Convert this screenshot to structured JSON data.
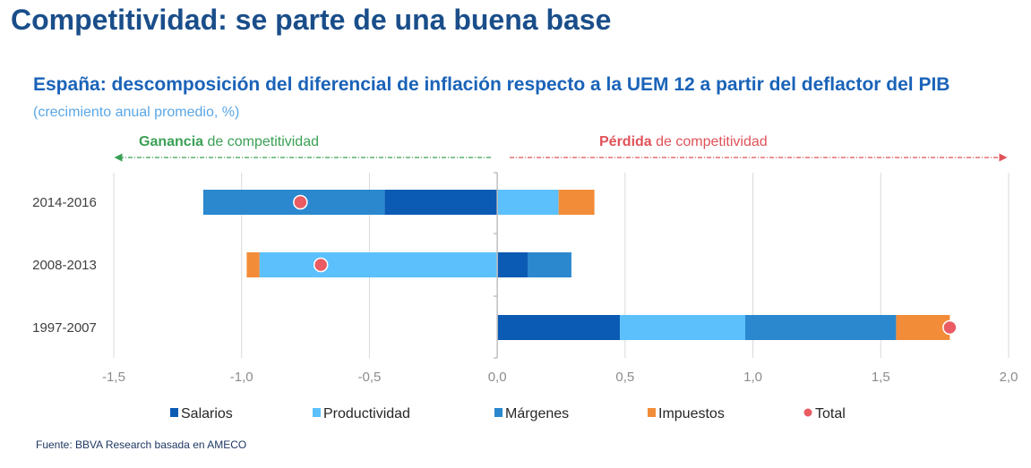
{
  "page": {
    "title": "Competitividad: se parte de una buena base",
    "chart_title": "España: descomposición del diferencial de inflación respecto a la UEM 12 a partir del deflactor del PIB",
    "chart_subtitle": "(crecimiento anual promedio, %)",
    "source": "Fuente: BBVA Research basada en AMECO"
  },
  "annotations": {
    "gain_bold": "Ganancia",
    "gain_rest": "de competitividad",
    "loss_bold": "Pérdida",
    "loss_rest": "de competitividad"
  },
  "colors": {
    "Salarios": "#0b5ab3",
    "Productividad": "#5bc0fb",
    "Márgenes": "#2b88cf",
    "Impuestos": "#f28c38",
    "Total": "#ea5b62",
    "gain": "#3aa055",
    "loss": "#e05259",
    "axis_text": "#8c8c8c",
    "grid": "#d9d9d9"
  },
  "chart_data": {
    "type": "bar",
    "orientation": "horizontal",
    "stacked": true,
    "categories": [
      "2014-2016",
      "2008-2013",
      "1997-2007"
    ],
    "series": [
      {
        "name": "Salarios",
        "values": [
          -0.44,
          0.12,
          0.48
        ]
      },
      {
        "name": "Productividad",
        "values": [
          0.24,
          -0.93,
          0.49
        ]
      },
      {
        "name": "Márgenes",
        "values": [
          -0.71,
          0.17,
          0.59
        ]
      },
      {
        "name": "Impuestos",
        "values": [
          0.14,
          -0.05,
          0.21
        ]
      }
    ],
    "total": {
      "name": "Total",
      "values": [
        -0.77,
        -0.69,
        1.77
      ]
    },
    "xlim": [
      -1.5,
      2.0
    ],
    "xticks": [
      -1.5,
      -1.0,
      -0.5,
      0.0,
      0.5,
      1.0,
      1.5,
      2.0
    ],
    "xtick_labels": [
      "-1,5",
      "-1,0",
      "-0,5",
      "0,0",
      "0,5",
      "1,0",
      "1,5",
      "2,0"
    ],
    "legend": [
      "Salarios",
      "Productividad",
      "Márgenes",
      "Impuestos",
      "Total"
    ],
    "legend_position": "bottom",
    "grid": true
  }
}
